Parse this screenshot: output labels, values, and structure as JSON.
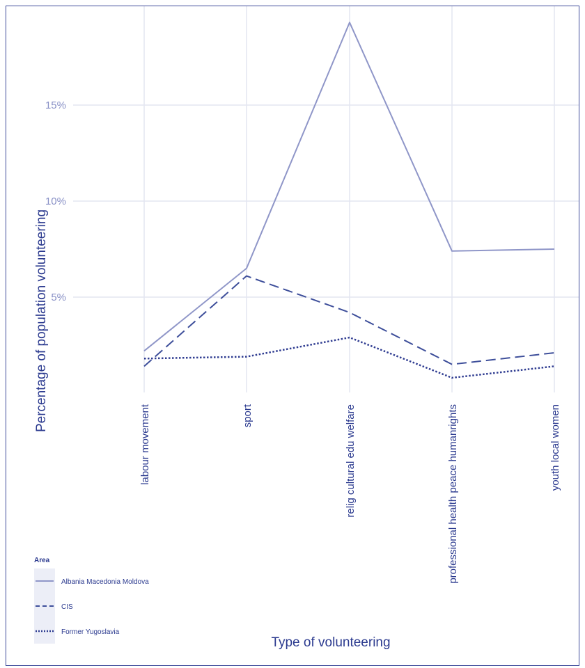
{
  "chart_data": {
    "type": "line",
    "categories": [
      "labour  movement",
      "sport",
      "relig  cultural  edu  welfare",
      "professional  health  peace  humanrights",
      "youth  local  women"
    ],
    "xlabel": "Type  of  volunteering",
    "ylabel": "Percentage  of  population  volunteering",
    "yticks": [
      {
        "value": 5,
        "label": "5%"
      },
      {
        "value": 10,
        "label": "10%"
      },
      {
        "value": 15,
        "label": "15%"
      }
    ],
    "ylim": [
      0,
      19.5
    ],
    "grid": true,
    "legend": {
      "title": "Area",
      "placement": "bottom-left",
      "entries": [
        "Albania Macedonia Moldova",
        "CIS",
        "Former Yugoslavia"
      ]
    },
    "series": [
      {
        "name": "Albania Macedonia Moldova",
        "values": [
          2.2,
          6.5,
          19.3,
          7.4,
          7.5
        ],
        "style": "solid",
        "color": "#8f96c8"
      },
      {
        "name": "CIS",
        "values": [
          1.4,
          6.1,
          4.2,
          1.5,
          2.1
        ],
        "style": "dashed",
        "color": "#3d4e9a"
      },
      {
        "name": "Former Yugoslavia",
        "values": [
          1.8,
          1.9,
          2.9,
          0.8,
          1.4
        ],
        "style": "dotted",
        "color": "#2f3c91"
      }
    ]
  }
}
